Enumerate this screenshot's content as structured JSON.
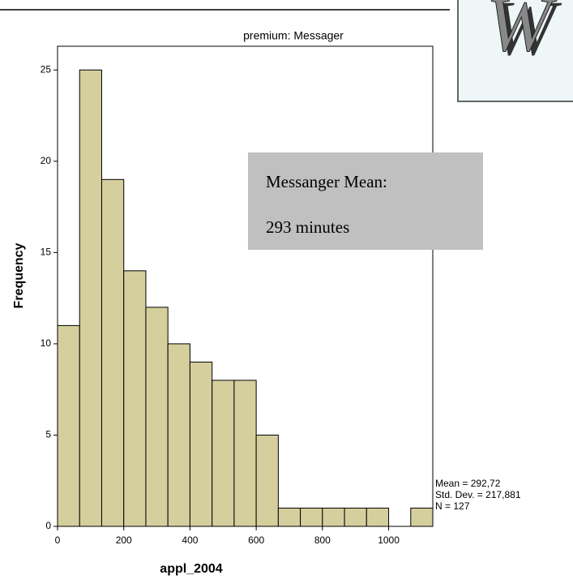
{
  "chart_data": {
    "type": "histogram",
    "title": "premium: Messager",
    "x_label": "appl_2004",
    "y_label": "Frequency",
    "bins": [
      0,
      66.7,
      133.3,
      200,
      266.7,
      333.3,
      400,
      466.7,
      533.3,
      600,
      666.7,
      733.3,
      800,
      866.7,
      933.3,
      1000,
      1066.7,
      1133.3
    ],
    "values": [
      11,
      25,
      19,
      14,
      12,
      10,
      9,
      8,
      8,
      5,
      1,
      1,
      1,
      1,
      1,
      0,
      1
    ],
    "color": "#d4cf9c",
    "xlim": [
      0,
      1133.3
    ],
    "ylim": [
      0,
      26.3
    ],
    "xticks": [
      0,
      200,
      400,
      600,
      800,
      1000
    ],
    "yticks": [
      0,
      5,
      10,
      15,
      20,
      25
    ],
    "stats": [
      "Mean = 292,72",
      "Std. Dev. = 217,881",
      "N = 127"
    ],
    "annotation": [
      "Messanger Mean:",
      "293 minutes"
    ],
    "logo": "W"
  }
}
